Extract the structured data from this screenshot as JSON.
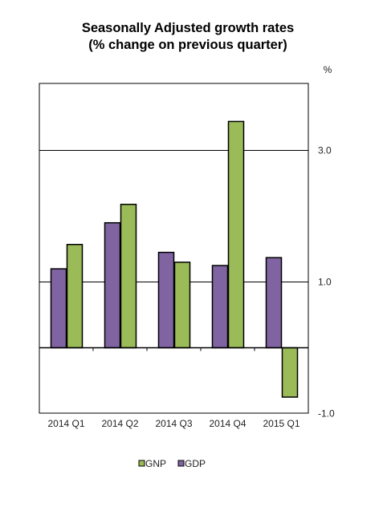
{
  "chart_data": {
    "type": "bar",
    "title": "Seasonally Adjusted growth rates",
    "subtitle": "(% change on previous quarter)",
    "ylabel": "%",
    "ylim": [
      -1.0,
      4.0
    ],
    "yticks": [
      {
        "value": 3.0,
        "label": "3.0"
      },
      {
        "value": 1.0,
        "label": "1.0"
      },
      {
        "value": -1.0,
        "label": "-1.0"
      }
    ],
    "gridlines": [
      3.0,
      1.0
    ],
    "grid": true,
    "legend_position": "bottom",
    "categories": [
      "2014 Q1",
      "2014 Q2",
      "2014 Q3",
      "2014 Q4",
      "2015 Q1"
    ],
    "series": [
      {
        "name": "GDP",
        "color": "#8064a2",
        "values": [
          1.2,
          1.9,
          1.45,
          1.25,
          1.37
        ]
      },
      {
        "name": "GNP",
        "color": "#9bbb59",
        "values": [
          1.57,
          2.18,
          1.3,
          3.44,
          -0.75
        ]
      }
    ],
    "legend_order": [
      "GNP",
      "GDP"
    ]
  }
}
